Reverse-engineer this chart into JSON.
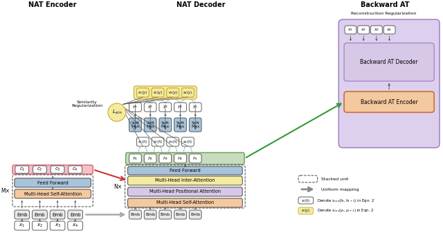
{
  "title_encoder": "NAT Encoder",
  "title_decoder": "NAT Decoder",
  "title_backward": "Backward AT",
  "colors": {
    "blue_fill": "#A8C4DC",
    "orange_fill": "#F5C9A0",
    "pink_fill": "#F5C0C8",
    "pink_edge": "#E06070",
    "purple_fill": "#D8C8E8",
    "yellow_fill": "#F5EBA0",
    "yellow_edge": "#C8A830",
    "green_fill": "#C8DCC0",
    "green_edge": "#6A9F5A",
    "white_fill": "#FFFFFF",
    "gray_fill": "#E8E8E8",
    "lsim_fill": "#F5EBA0",
    "lsim_edge": "#C8A830",
    "backward_bg": "#DDD0EE",
    "backward_bg_edge": "#9977BB",
    "backward_enc_fill": "#F5C9A0",
    "backward_enc_edge": "#C87030",
    "backward_dec_fill": "#D8C8E8",
    "backward_dec_edge": "#9977BB",
    "dark_edge": "#444444",
    "red_arrow": "#CC3333",
    "green_arrow": "#339933",
    "blue_dash": "#4477AA"
  },
  "figsize": [
    6.4,
    3.36
  ],
  "dpi": 100
}
